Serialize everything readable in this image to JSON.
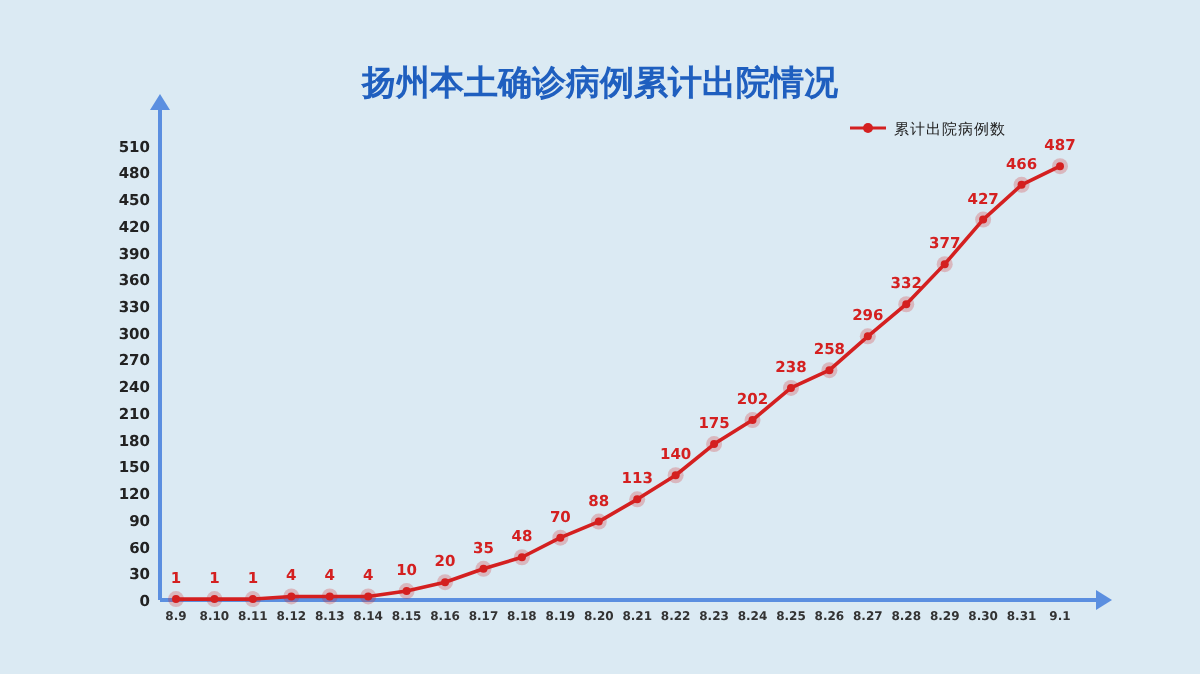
{
  "chart_data": {
    "type": "line",
    "title": "扬州本土确诊病例累计出院情况",
    "categories": [
      "8.9",
      "8.10",
      "8.11",
      "8.12",
      "8.13",
      "8.14",
      "8.15",
      "8.16",
      "8.17",
      "8.18",
      "8.19",
      "8.20",
      "8.21",
      "8.22",
      "8.23",
      "8.24",
      "8.25",
      "8.26",
      "8.27",
      "8.28",
      "8.29",
      "8.30",
      "8.31",
      "9.1"
    ],
    "series": [
      {
        "name": "累计出院病例数",
        "color": "#d42020",
        "values": [
          1,
          1,
          1,
          4,
          4,
          4,
          10,
          20,
          35,
          48,
          70,
          88,
          113,
          140,
          175,
          202,
          238,
          258,
          296,
          332,
          377,
          427,
          466,
          487
        ]
      }
    ],
    "ylim": [
      0,
      550
    ],
    "yticks": [
      0,
      30,
      60,
      90,
      120,
      150,
      180,
      210,
      240,
      270,
      300,
      330,
      360,
      390,
      420,
      450,
      480,
      510
    ],
    "data_labels": true,
    "legend": "top right",
    "marker": "circle",
    "grid": false
  }
}
